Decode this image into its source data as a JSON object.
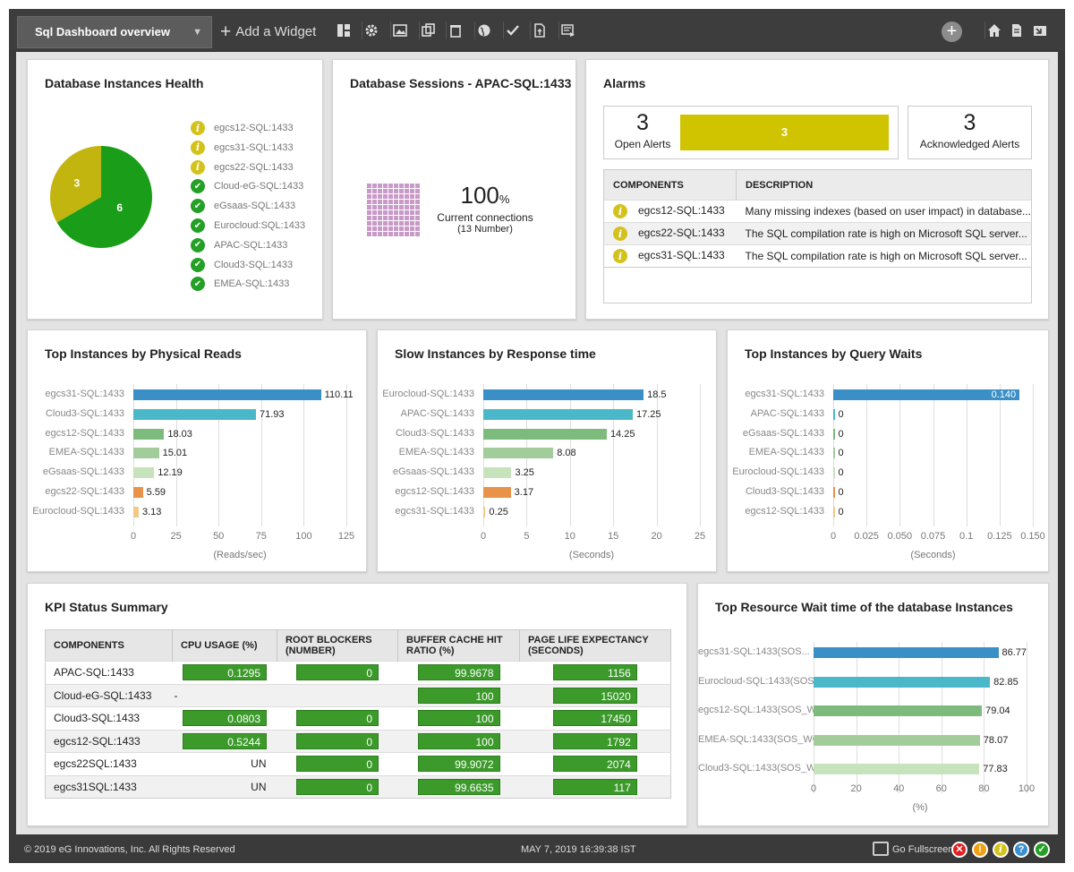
{
  "toolbar": {
    "dashboard_name": "Sql Dashboard overview",
    "add_widget_label": "Add a Widget"
  },
  "health": {
    "title": "Database Instances Health",
    "pie": {
      "warning": 3,
      "ok": 6,
      "warning_color": "#c2b50f",
      "ok_color": "#1a9e1a"
    },
    "instances": [
      {
        "name": "egcs12-SQL:1433",
        "status": "warning"
      },
      {
        "name": "egcs31-SQL:1433",
        "status": "warning"
      },
      {
        "name": "egcs22-SQL:1433",
        "status": "warning"
      },
      {
        "name": "Cloud-eG-SQL:1433",
        "status": "ok"
      },
      {
        "name": "eGsaas-SQL:1433",
        "status": "ok"
      },
      {
        "name": "Eurocloud:SQL:1433",
        "status": "ok"
      },
      {
        "name": "APAC-SQL:1433",
        "status": "ok"
      },
      {
        "name": "Cloud3-SQL:1433",
        "status": "ok"
      },
      {
        "name": "EMEA-SQL:1433",
        "status": "ok"
      }
    ]
  },
  "sessions": {
    "title": "Database Sessions - APAC-SQL:1433",
    "value": "100",
    "unit": "%",
    "label": "Current connections",
    "sublabel": "(13 Number)",
    "fill_fraction": 1.0
  },
  "alarms": {
    "title": "Alarms",
    "open_count": "3",
    "open_label": "Open Alerts",
    "open_bar_value": "3",
    "ack_count": "3",
    "ack_label": "Acknowledged Alerts",
    "columns": [
      "COMPONENTS",
      "DESCRIPTION"
    ],
    "rows": [
      {
        "component": "egcs12-SQL:1433",
        "description": "Many missing indexes (based on user impact) in database..."
      },
      {
        "component": "egcs22-SQL:1433",
        "description": "The SQL compilation rate is high on Microsoft SQL server..."
      },
      {
        "component": "egcs31-SQL:1433",
        "description": "The SQL compilation rate is high on Microsoft SQL server..."
      }
    ]
  },
  "chart_data": [
    {
      "type": "bar",
      "title": "Top Instances by Physical Reads",
      "xlabel": "(Reads/sec)",
      "ylabel": "",
      "categories": [
        "egcs31-SQL:1433",
        "Cloud3-SQL:1433",
        "egcs12-SQL:1433",
        "EMEA-SQL:1433",
        "eGsaas-SQL:1433",
        "egcs22-SQL:1433",
        "Eurocloud-SQL:1433"
      ],
      "values": [
        110.11,
        71.93,
        18.03,
        15.01,
        12.19,
        5.59,
        3.13
      ],
      "value_labels": [
        "110.11",
        "71.93",
        "18.03",
        "15.01",
        "12.19",
        "5.59",
        "3.13"
      ],
      "colors": [
        "#3b8fc7",
        "#4bb8c9",
        "#7dbb7d",
        "#a2cd9a",
        "#c6e3bc",
        "#e8924a",
        "#f0c987"
      ],
      "xlim": [
        0,
        125
      ],
      "ticks": [
        "0",
        "25",
        "50",
        "75",
        "100",
        "125"
      ],
      "grid": true
    },
    {
      "type": "bar",
      "title": "Slow Instances by Response time",
      "xlabel": "(Seconds)",
      "ylabel": "",
      "categories": [
        "Eurocloud-SQL:1433",
        "APAC-SQL:1433",
        "Cloud3-SQL:1433",
        "EMEA-SQL:1433",
        "eGsaas-SQL:1433",
        "egcs12-SQL:1433",
        "egcs31-SQL:1433"
      ],
      "values": [
        18.5,
        17.25,
        14.25,
        8.08,
        3.25,
        3.17,
        0.25
      ],
      "value_labels": [
        "18.5",
        "17.25",
        "14.25",
        "8.08",
        "3.25",
        "3.17",
        "0.25"
      ],
      "colors": [
        "#3b8fc7",
        "#4bb8c9",
        "#7dbb7d",
        "#a2cd9a",
        "#c6e3bc",
        "#e8924a",
        "#f0c987"
      ],
      "xlim": [
        0,
        25
      ],
      "ticks": [
        "0",
        "5",
        "10",
        "15",
        "20",
        "25"
      ],
      "grid": true
    },
    {
      "type": "bar",
      "title": "Top Instances by Query Waits",
      "xlabel": "(Seconds)",
      "ylabel": "",
      "categories": [
        "egcs31-SQL:1433",
        "APAC-SQL:1433",
        "eGsaas-SQL:1433",
        "EMEA-SQL:1433",
        "Eurocloud-SQL:1433",
        "Cloud3-SQL:1433",
        "egcs12-SQL:1433"
      ],
      "values": [
        0.14,
        0,
        0,
        0,
        0,
        0,
        0
      ],
      "value_labels": [
        "0.140",
        "0",
        "0",
        "0",
        "0",
        "0",
        "0"
      ],
      "colors": [
        "#3b8fc7",
        "#4bb8c9",
        "#7dbb7d",
        "#a2cd9a",
        "#c6e3bc",
        "#e8924a",
        "#f0c987"
      ],
      "xlim": [
        0,
        0.15
      ],
      "ticks": [
        "0",
        "0.025",
        "0.050",
        "0.075",
        "0.1",
        "0.125",
        "0.150"
      ],
      "grid": true
    },
    {
      "type": "bar",
      "title": "Top Resource Wait time of the database Instances",
      "xlabel": "(%)",
      "ylabel": "",
      "categories": [
        "egcs31-SQL:1433(SOS...",
        "Eurocloud-SQL:1433(SOS...",
        "egcs12-SQL:1433(SOS_WO...",
        "EMEA-SQL:1433(SOS_WO...",
        "Cloud3-SQL:1433(SOS_WO..."
      ],
      "values": [
        86.77,
        82.85,
        79.04,
        78.07,
        77.83
      ],
      "value_labels": [
        "86.77",
        "82.85",
        "79.04",
        "78.07",
        "77.83"
      ],
      "colors": [
        "#3b8fc7",
        "#4bb8c9",
        "#7dbb7d",
        "#a2cd9a",
        "#c6e3bc"
      ],
      "xlim": [
        0,
        100
      ],
      "ticks": [
        "0",
        "20",
        "40",
        "60",
        "80",
        "100"
      ],
      "grid": true
    }
  ],
  "kpi": {
    "title": "KPI Status Summary",
    "columns": [
      "COMPONENTS",
      "CPU USAGE (%)",
      "ROOT BLOCKERS (NUMBER)",
      "BUFFER CACHE HIT RATIO (%)",
      "PAGE LIFE EXPECTANCY (SECONDS)"
    ],
    "rows": [
      {
        "component": "APAC-SQL:1433",
        "cpu": "0.1295",
        "blockers": "0",
        "buffer": "99.9678",
        "ple": "1156"
      },
      {
        "component": "Cloud-eG-SQL:1433",
        "cpu": "-",
        "blockers": "",
        "buffer": "100",
        "ple": "15020"
      },
      {
        "component": "Cloud3-SQL:1433",
        "cpu": "0.0803",
        "blockers": "0",
        "buffer": "100",
        "ple": "17450"
      },
      {
        "component": "egcs12-SQL:1433",
        "cpu": "0.5244",
        "blockers": "0",
        "buffer": "100",
        "ple": "1792"
      },
      {
        "component": "egcs22SQL:1433",
        "cpu": "UN",
        "blockers": "0",
        "buffer": "99.9072",
        "ple": "2074"
      },
      {
        "component": "egcs31SQL:1433",
        "cpu": "UN",
        "blockers": "0",
        "buffer": "99.6635",
        "ple": "117"
      }
    ]
  },
  "footer": {
    "copyright": "© 2019  eG Innovations, Inc. All Rights Reserved",
    "datetime": "MAY 7, 2019 16:39:38 IST",
    "fullscreen_label": "Go Fullscreen",
    "status_colors": [
      "#e02020",
      "#f0a010",
      "#d4c21c",
      "#3a8fd0",
      "#23a025"
    ]
  }
}
